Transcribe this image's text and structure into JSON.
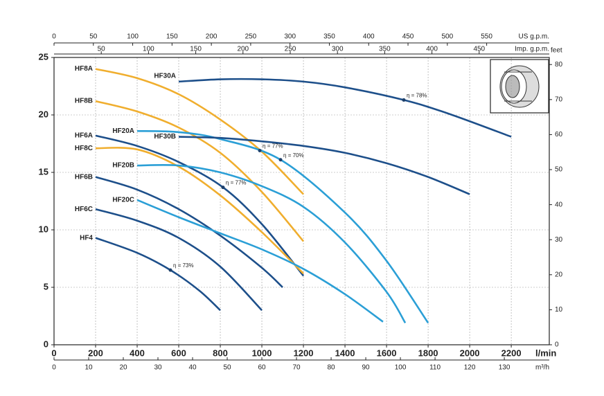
{
  "chart_data": {
    "type": "line",
    "x_label": "l/min",
    "xlim": [
      0,
      2383
    ],
    "xticks": [
      0,
      200,
      400,
      600,
      800,
      1000,
      1200,
      1400,
      1600,
      1800,
      2000,
      2200
    ],
    "ylim": [
      0,
      25
    ],
    "yticks": [
      0,
      5,
      10,
      15,
      20,
      25
    ],
    "grid": true,
    "axis_m3h": {
      "label": "m³/h",
      "lim": [
        0,
        142.98
      ],
      "ticks": [
        0,
        10,
        20,
        30,
        40,
        50,
        60,
        70,
        80,
        90,
        100,
        110,
        120,
        130
      ]
    },
    "axis_us_gpm": {
      "label": "US g.p.m.",
      "lim": [
        0,
        629.6
      ],
      "ticks": [
        0,
        50,
        100,
        150,
        200,
        250,
        300,
        350,
        400,
        450,
        500,
        550
      ]
    },
    "axis_imp_gpm": {
      "label": "Imp. g.p.m.",
      "lim": [
        0,
        524.2
      ],
      "ticks": [
        50,
        100,
        150,
        200,
        250,
        300,
        350,
        400,
        450
      ]
    },
    "axis_feet": {
      "label": "feet",
      "lim": [
        0,
        82.02
      ],
      "ticks": [
        0,
        10,
        20,
        30,
        40,
        50,
        60,
        70,
        80
      ]
    },
    "series": [
      {
        "name": "HF4",
        "color": "#1d4f8a",
        "x": [
          200,
          400,
          560,
          700,
          800
        ],
        "values": [
          9.3,
          8.0,
          6.5,
          4.7,
          3.0
        ]
      },
      {
        "name": "HF6C",
        "color": "#1d4f8a",
        "x": [
          200,
          400,
          600,
          800,
          1000
        ],
        "values": [
          11.8,
          10.8,
          9.3,
          6.8,
          3.0
        ]
      },
      {
        "name": "HF6B",
        "color": "#1d4f8a",
        "x": [
          200,
          400,
          600,
          800,
          1000,
          1100
        ],
        "values": [
          14.6,
          13.5,
          11.8,
          9.5,
          6.7,
          5.0
        ]
      },
      {
        "name": "HF6A",
        "color": "#1d4f8a",
        "x": [
          200,
          400,
          600,
          813,
          1000,
          1200
        ],
        "values": [
          18.2,
          17.3,
          15.9,
          13.7,
          10.5,
          6.0
        ]
      },
      {
        "name": "HF8C",
        "color": "#f0ae2e",
        "x": [
          200,
          400,
          600,
          800,
          1000,
          1200
        ],
        "values": [
          17.1,
          17.0,
          15.5,
          13.0,
          9.8,
          6.2
        ]
      },
      {
        "name": "HF8B",
        "color": "#f0ae2e",
        "x": [
          200,
          400,
          600,
          800,
          1000,
          1200
        ],
        "values": [
          21.2,
          20.3,
          18.9,
          16.7,
          13.3,
          9.0
        ]
      },
      {
        "name": "HF8A",
        "color": "#f0ae2e",
        "x": [
          200,
          400,
          600,
          800,
          1000,
          1200
        ],
        "values": [
          24.0,
          23.2,
          21.8,
          19.6,
          16.8,
          13.1
        ]
      },
      {
        "name": "HF20C",
        "color": "#2b9fd6",
        "x": [
          400,
          600,
          800,
          1000,
          1200,
          1400,
          1583
        ],
        "values": [
          12.6,
          11.1,
          9.7,
          8.3,
          6.6,
          4.4,
          2.0
        ]
      },
      {
        "name": "HF20B",
        "color": "#2b9fd6",
        "x": [
          400,
          600,
          800,
          1000,
          1200,
          1400,
          1600,
          1690
        ],
        "values": [
          15.6,
          15.6,
          15.0,
          13.8,
          12.0,
          8.9,
          4.6,
          1.9
        ]
      },
      {
        "name": "HF20A",
        "color": "#2b9fd6",
        "x": [
          400,
          600,
          800,
          1090,
          1400,
          1600,
          1800
        ],
        "values": [
          18.6,
          18.5,
          17.9,
          16.1,
          11.5,
          7.3,
          1.9
        ]
      },
      {
        "name": "HF30B",
        "color": "#1d4f8a",
        "x": [
          600,
          800,
          1000,
          1200,
          1400,
          1600,
          1800,
          2000
        ],
        "values": [
          18.1,
          18.0,
          17.7,
          17.3,
          16.7,
          15.8,
          14.6,
          13.1
        ]
      },
      {
        "name": "HF30A",
        "color": "#1d4f8a",
        "x": [
          600,
          800,
          1000,
          1200,
          1400,
          1683,
          1900,
          2200
        ],
        "values": [
          22.9,
          23.1,
          23.1,
          22.9,
          22.4,
          21.3,
          20.1,
          18.1
        ]
      }
    ],
    "annotations": [
      {
        "text": "η = 73%",
        "x": 560,
        "y": 6.5
      },
      {
        "text": "η = 77%",
        "x": 813,
        "y": 13.7
      },
      {
        "text": "η = 77%",
        "x": 990,
        "y": 16.9
      },
      {
        "text": "η = 70%",
        "x": 1090,
        "y": 16.1
      },
      {
        "text": "η = 78%",
        "x": 1683,
        "y": 21.3
      }
    ]
  }
}
